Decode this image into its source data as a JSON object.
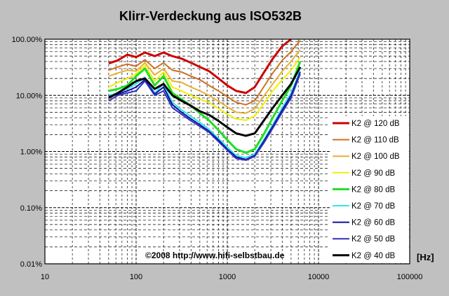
{
  "chart_data": {
    "type": "line",
    "title": "Klirr-Verdeckung aus ISO532B",
    "x_scale": "log",
    "y_scale": "log",
    "xlim": [
      10,
      100000
    ],
    "ylim": [
      0.01,
      100
    ],
    "x_ticks": [
      {
        "value": 10,
        "label": "10"
      },
      {
        "value": 100,
        "label": "100"
      },
      {
        "value": 1000,
        "label": "1000"
      },
      {
        "value": 10000,
        "label": "10000"
      },
      {
        "value": 100000,
        "label": "100000"
      }
    ],
    "y_ticks": [
      {
        "value": 100,
        "label": "100.00%"
      },
      {
        "value": 10,
        "label": "10.00%"
      },
      {
        "value": 1,
        "label": "1.00%"
      },
      {
        "value": 0.1,
        "label": "0.10%"
      },
      {
        "value": 0.01,
        "label": "0.01%"
      }
    ],
    "x_unit": "[Hz]",
    "grid": true,
    "legend_position": "right",
    "annotation": "©2008 http://www.hifi-selbstbau.de",
    "series": [
      {
        "name": "K2 @ 120 dB",
        "color": "#cc0000",
        "width": 3,
        "points": [
          [
            50,
            37
          ],
          [
            63,
            42
          ],
          [
            80,
            53
          ],
          [
            100,
            48
          ],
          [
            125,
            58
          ],
          [
            160,
            50
          ],
          [
            200,
            58
          ],
          [
            250,
            50
          ],
          [
            315,
            45
          ],
          [
            400,
            38
          ],
          [
            500,
            32
          ],
          [
            630,
            27
          ],
          [
            800,
            20
          ],
          [
            1000,
            15
          ],
          [
            1250,
            12
          ],
          [
            1600,
            11
          ],
          [
            2000,
            14
          ],
          [
            2500,
            25
          ],
          [
            3150,
            45
          ],
          [
            4000,
            75
          ],
          [
            5000,
            100
          ]
        ]
      },
      {
        "name": "K2 @ 110 dB",
        "color": "#d07020",
        "width": 2,
        "points": [
          [
            50,
            28
          ],
          [
            63,
            32
          ],
          [
            80,
            36
          ],
          [
            100,
            33
          ],
          [
            125,
            43
          ],
          [
            160,
            30
          ],
          [
            200,
            38
          ],
          [
            250,
            28
          ],
          [
            315,
            26
          ],
          [
            400,
            22
          ],
          [
            500,
            19
          ],
          [
            630,
            15
          ],
          [
            800,
            12
          ],
          [
            1000,
            9.5
          ],
          [
            1250,
            7.5
          ],
          [
            1600,
            6.8
          ],
          [
            2000,
            8
          ],
          [
            2500,
            14
          ],
          [
            3150,
            25
          ],
          [
            4000,
            42
          ],
          [
            5000,
            60
          ],
          [
            6300,
            95
          ]
        ]
      },
      {
        "name": "K2 @ 100 dB",
        "color": "#e8b030",
        "width": 2,
        "points": [
          [
            50,
            22
          ],
          [
            63,
            25
          ],
          [
            80,
            28
          ],
          [
            100,
            27
          ],
          [
            125,
            38
          ],
          [
            160,
            23
          ],
          [
            200,
            30
          ],
          [
            250,
            18
          ],
          [
            315,
            17
          ],
          [
            400,
            14
          ],
          [
            500,
            12
          ],
          [
            630,
            10
          ],
          [
            800,
            7.8
          ],
          [
            1000,
            6.2
          ],
          [
            1250,
            5
          ],
          [
            1600,
            4.8
          ],
          [
            2000,
            5.8
          ],
          [
            2500,
            9.5
          ],
          [
            3150,
            16
          ],
          [
            4000,
            27
          ],
          [
            5000,
            40
          ],
          [
            6300,
            65
          ]
        ]
      },
      {
        "name": "K2 @ 90 dB",
        "color": "#f0f000",
        "width": 2,
        "points": [
          [
            50,
            14
          ],
          [
            63,
            17
          ],
          [
            80,
            20
          ],
          [
            100,
            24
          ],
          [
            125,
            34
          ],
          [
            160,
            18
          ],
          [
            200,
            26
          ],
          [
            250,
            14
          ],
          [
            315,
            12
          ],
          [
            400,
            10
          ],
          [
            500,
            8.5
          ],
          [
            630,
            7.5
          ],
          [
            800,
            5.8
          ],
          [
            1000,
            4.6
          ],
          [
            1250,
            3.8
          ],
          [
            1600,
            3.6
          ],
          [
            2000,
            4.3
          ],
          [
            2500,
            7
          ],
          [
            3150,
            12
          ],
          [
            4000,
            19
          ],
          [
            5000,
            28
          ],
          [
            6300,
            48
          ]
        ]
      },
      {
        "name": "K2 @ 80 dB",
        "color": "#22dd22",
        "width": 3,
        "points": [
          [
            50,
            12
          ],
          [
            63,
            13
          ],
          [
            80,
            15
          ],
          [
            100,
            22
          ],
          [
            125,
            30
          ],
          [
            160,
            15
          ],
          [
            200,
            22
          ],
          [
            250,
            11
          ],
          [
            315,
            8.5
          ],
          [
            400,
            6.5
          ],
          [
            500,
            4.8
          ],
          [
            630,
            3.6
          ],
          [
            800,
            2.4
          ],
          [
            1000,
            1.6
          ],
          [
            1250,
            1.1
          ],
          [
            1600,
            0.95
          ],
          [
            2000,
            1.1
          ],
          [
            2500,
            2
          ],
          [
            3150,
            4
          ],
          [
            4000,
            8
          ],
          [
            5000,
            15
          ],
          [
            6300,
            40
          ]
        ]
      },
      {
        "name": "K2 @ 70 dB",
        "color": "#30e8e8",
        "width": 2,
        "points": [
          [
            50,
            10
          ],
          [
            63,
            11
          ],
          [
            80,
            13
          ],
          [
            100,
            16
          ],
          [
            125,
            21
          ],
          [
            160,
            11
          ],
          [
            200,
            16
          ],
          [
            250,
            7.5
          ],
          [
            315,
            5.5
          ],
          [
            400,
            4.2
          ],
          [
            500,
            3.3
          ],
          [
            630,
            2.5
          ],
          [
            800,
            1.7
          ],
          [
            1000,
            1.2
          ],
          [
            1250,
            0.85
          ],
          [
            1600,
            0.78
          ],
          [
            2000,
            0.9
          ],
          [
            2500,
            1.6
          ],
          [
            3150,
            3
          ],
          [
            4000,
            6
          ],
          [
            5000,
            11
          ],
          [
            6300,
            28
          ]
        ]
      },
      {
        "name": "K2 @ 60 dB",
        "color": "#1010a0",
        "width": 2,
        "points": [
          [
            50,
            9.5
          ],
          [
            63,
            10.5
          ],
          [
            80,
            12
          ],
          [
            100,
            14
          ],
          [
            125,
            19
          ],
          [
            160,
            10.5
          ],
          [
            200,
            14
          ],
          [
            250,
            6.8
          ],
          [
            315,
            5
          ],
          [
            400,
            3.8
          ],
          [
            500,
            3
          ],
          [
            630,
            2.3
          ],
          [
            800,
            1.6
          ],
          [
            1000,
            1.1
          ],
          [
            1250,
            0.8
          ],
          [
            1600,
            0.72
          ],
          [
            2000,
            0.85
          ],
          [
            2500,
            1.5
          ],
          [
            3150,
            2.8
          ],
          [
            4000,
            5.5
          ],
          [
            5000,
            10
          ],
          [
            6300,
            26
          ]
        ]
      },
      {
        "name": "K2 @ 50 dB",
        "color": "#3030c0",
        "width": 2,
        "points": [
          [
            50,
            8
          ],
          [
            63,
            10
          ],
          [
            80,
            11
          ],
          [
            100,
            12
          ],
          [
            125,
            18
          ],
          [
            160,
            10
          ],
          [
            200,
            12
          ],
          [
            250,
            6
          ],
          [
            315,
            4.6
          ],
          [
            400,
            3.5
          ],
          [
            500,
            2.8
          ],
          [
            630,
            2.2
          ],
          [
            800,
            1.5
          ],
          [
            1000,
            1.05
          ],
          [
            1250,
            0.75
          ],
          [
            1600,
            0.7
          ],
          [
            2000,
            0.82
          ],
          [
            2500,
            1.4
          ],
          [
            3150,
            2.6
          ],
          [
            4000,
            5
          ],
          [
            5000,
            9
          ],
          [
            6300,
            24
          ]
        ]
      },
      {
        "name": "K2 @ 40 dB",
        "color": "#000000",
        "width": 3,
        "points": [
          [
            50,
            9
          ],
          [
            63,
            11
          ],
          [
            80,
            14
          ],
          [
            100,
            18
          ],
          [
            125,
            20
          ],
          [
            160,
            13
          ],
          [
            200,
            16
          ],
          [
            250,
            10
          ],
          [
            315,
            8
          ],
          [
            400,
            6.5
          ],
          [
            500,
            5.2
          ],
          [
            630,
            4.5
          ],
          [
            800,
            3.5
          ],
          [
            1000,
            2.7
          ],
          [
            1250,
            2.1
          ],
          [
            1600,
            1.9
          ],
          [
            2000,
            2.1
          ],
          [
            2500,
            3.5
          ],
          [
            3150,
            6
          ],
          [
            4000,
            10
          ],
          [
            5000,
            16
          ],
          [
            6300,
            32
          ]
        ]
      }
    ]
  }
}
